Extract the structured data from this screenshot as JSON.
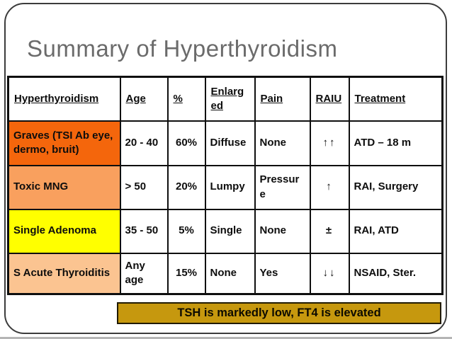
{
  "slide": {
    "title": "Summary of Hyperthyroidism",
    "banner_text": "TSH is markedly low, FT4 is elevated"
  },
  "table": {
    "headers": {
      "name": "Hyperthyroidism",
      "age": "Age",
      "pct": "%",
      "enlarged": "Enlarged",
      "pain": "Pain",
      "raiu": "RAIU",
      "treatment": "Treatment"
    },
    "rows": [
      {
        "name": "Graves (TSI Ab eye, dermo, bruit)",
        "age": "20 - 40",
        "pct": "60%",
        "enlarged": "Diffuse",
        "pain": "None",
        "raiu": "↑↑",
        "treatment": "ATD – 18 m",
        "color": "#f4660c"
      },
      {
        "name": "Toxic MNG",
        "age": "> 50",
        "pct": "20%",
        "enlarged": "Lumpy",
        "pain": "Pressure",
        "raiu": "↑",
        "treatment": "RAI, Surgery",
        "color": "#f9a05e"
      },
      {
        "name": "Single Adenoma",
        "age": "35 - 50",
        "pct": "5%",
        "enlarged": "Single",
        "pain": "None",
        "raiu": "±",
        "treatment": "RAI, ATD",
        "color": "#ffff00"
      },
      {
        "name": "S Acute Thyroiditis",
        "age": "Any age",
        "pct": "15%",
        "enlarged": "None",
        "pain": "Yes",
        "raiu": "↓↓",
        "treatment": "NSAID, Ster.",
        "color": "#fbc491"
      }
    ]
  },
  "colors": {
    "title_gray": "#6b6b6b",
    "table_border": "#0f0f0f",
    "banner_gold": "#c6980e",
    "frame_border": "#3c3c3c"
  }
}
